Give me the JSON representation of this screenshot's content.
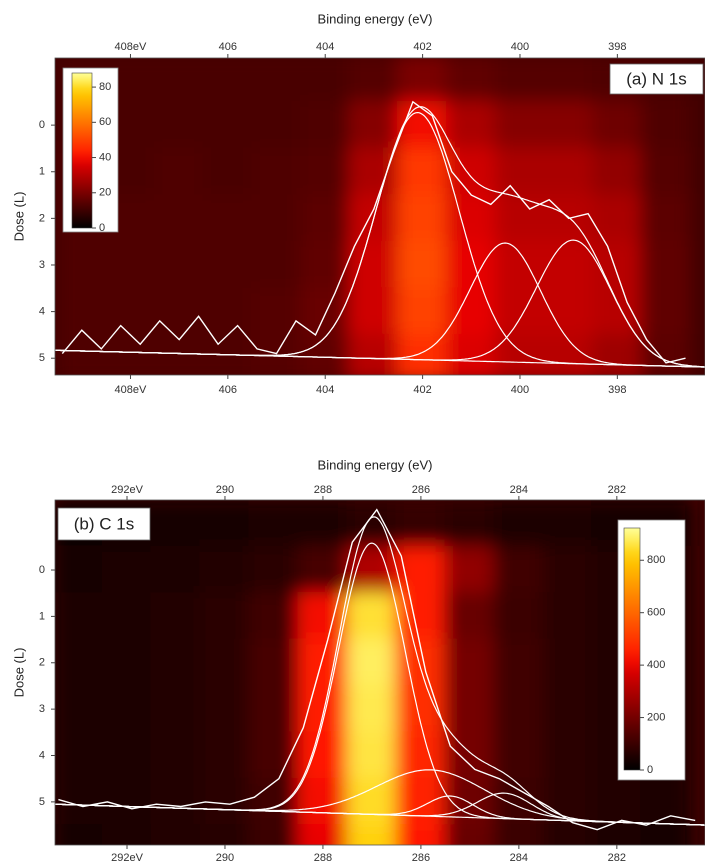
{
  "chart_data": [
    {
      "type": "heatmap",
      "panel_label": "(a) N 1s",
      "x_label": "Binding energy (eV)",
      "y_label": "Dose (L)",
      "xlim": [
        409.55,
        396.2
      ],
      "xticks": [
        {
          "value": 408,
          "label": "408eV"
        },
        406,
        404,
        402,
        400,
        398
      ],
      "ylim": [
        -1.44,
        5.36
      ],
      "yticks": [
        0,
        1,
        2,
        3,
        4,
        5
      ],
      "clim": [
        0,
        88
      ],
      "cticks": [
        0,
        20,
        40,
        60,
        80
      ],
      "z_x": [
        409,
        408,
        407,
        406,
        405,
        404,
        403,
        402,
        401,
        400,
        399,
        398,
        397
      ],
      "z_y": [
        -1,
        0,
        1,
        2,
        3,
        4,
        5
      ],
      "z": [
        [
          12,
          12,
          12,
          12,
          12,
          12,
          14,
          20,
          16,
          14,
          14,
          13,
          12
        ],
        [
          12,
          12,
          12,
          12,
          12,
          13,
          22,
          40,
          28,
          22,
          22,
          18,
          13
        ],
        [
          13,
          12,
          13,
          12,
          13,
          14,
          28,
          48,
          34,
          28,
          28,
          24,
          14
        ],
        [
          13,
          13,
          13,
          13,
          13,
          15,
          32,
          50,
          36,
          30,
          30,
          28,
          15
        ],
        [
          13,
          13,
          13,
          13,
          13,
          16,
          34,
          52,
          38,
          32,
          32,
          30,
          16
        ],
        [
          13,
          13,
          13,
          13,
          14,
          17,
          34,
          50,
          38,
          32,
          32,
          30,
          16
        ],
        [
          13,
          13,
          13,
          13,
          14,
          16,
          30,
          46,
          36,
          30,
          30,
          26,
          15
        ]
      ],
      "background": [
        4.83,
        5.19
      ],
      "peaks": [
        {
          "center": 402.1,
          "height": 5.3,
          "fwhm": 2.0
        },
        {
          "center": 400.3,
          "height": 2.55,
          "fwhm": 1.7
        },
        {
          "center": 398.9,
          "height": 2.65,
          "fwhm": 1.8
        }
      ],
      "spectrum": {
        "x": [
          409.4,
          409.0,
          408.6,
          408.2,
          407.8,
          407.4,
          407.0,
          406.6,
          406.2,
          405.8,
          405.4,
          405.0,
          404.6,
          404.2,
          403.8,
          403.4,
          403.0,
          402.6,
          402.2,
          401.8,
          401.4,
          401.0,
          400.6,
          400.2,
          399.8,
          399.4,
          399.0,
          398.6,
          398.2,
          397.8,
          397.4,
          397.0,
          396.6
        ],
        "y": [
          4.9,
          4.4,
          4.8,
          4.3,
          4.7,
          4.2,
          4.6,
          4.1,
          4.7,
          4.3,
          4.8,
          4.9,
          4.2,
          4.5,
          3.6,
          2.6,
          1.8,
          0.6,
          -0.5,
          -0.2,
          1.0,
          1.5,
          1.7,
          1.3,
          1.8,
          1.6,
          2.0,
          1.9,
          2.6,
          3.8,
          4.6,
          5.1,
          5.0
        ]
      },
      "line_color": "#ffffff"
    },
    {
      "type": "heatmap",
      "panel_label": "(b) C 1s",
      "x_label": "Binding energy (eV)",
      "y_label": "Dose (L)",
      "xlim": [
        293.47,
        280.2
      ],
      "xticks": [
        {
          "value": 292,
          "label": "292eV"
        },
        290,
        288,
        286,
        284,
        282
      ],
      "ylim": [
        -1.51,
        5.93
      ],
      "yticks": [
        0,
        1,
        2,
        3,
        4,
        5
      ],
      "clim": [
        0,
        923
      ],
      "cticks": [
        0,
        200,
        400,
        600,
        800
      ],
      "z_x": [
        293,
        292,
        291,
        290,
        289,
        288,
        287,
        286,
        285,
        284,
        283,
        282,
        281
      ],
      "z_y": [
        -1,
        0,
        1,
        2,
        3,
        4,
        5,
        6
      ],
      "z": [
        [
          30,
          30,
          35,
          40,
          45,
          50,
          70,
          90,
          70,
          50,
          45,
          40,
          35
        ],
        [
          40,
          45,
          50,
          60,
          70,
          120,
          300,
          450,
          250,
          110,
          70,
          55,
          45
        ],
        [
          45,
          50,
          60,
          70,
          110,
          420,
          850,
          450,
          180,
          100,
          70,
          55,
          45
        ],
        [
          45,
          50,
          60,
          75,
          120,
          450,
          880,
          480,
          200,
          110,
          75,
          55,
          45
        ],
        [
          45,
          50,
          60,
          75,
          120,
          450,
          870,
          480,
          200,
          110,
          75,
          55,
          45
        ],
        [
          45,
          50,
          60,
          75,
          120,
          440,
          860,
          470,
          200,
          110,
          75,
          55,
          45
        ],
        [
          45,
          50,
          60,
          70,
          110,
          420,
          840,
          460,
          190,
          105,
          70,
          55,
          45
        ],
        [
          40,
          45,
          55,
          65,
          100,
          400,
          820,
          440,
          180,
          100,
          65,
          50,
          40
        ]
      ],
      "background": [
        5.05,
        5.5
      ],
      "peaks": [
        {
          "center": 287.0,
          "height": 5.85,
          "fwhm": 1.6
        },
        {
          "center": 285.8,
          "height": 1.0,
          "fwhm": 2.6
        },
        {
          "center": 285.4,
          "height": 0.45,
          "fwhm": 1.1
        },
        {
          "center": 284.3,
          "height": 0.55,
          "fwhm": 1.3
        }
      ],
      "spectrum": {
        "x": [
          293.4,
          292.9,
          292.4,
          291.9,
          291.4,
          290.9,
          290.4,
          289.9,
          289.4,
          288.9,
          288.4,
          287.9,
          287.4,
          286.9,
          286.4,
          285.9,
          285.4,
          284.9,
          284.4,
          283.9,
          283.4,
          282.9,
          282.4,
          281.9,
          281.4,
          280.9,
          280.4
        ],
        "y": [
          4.95,
          5.1,
          5.0,
          5.15,
          5.05,
          5.1,
          5.0,
          5.05,
          4.9,
          4.5,
          3.4,
          1.5,
          -0.6,
          -1.3,
          -0.3,
          2.2,
          3.8,
          4.3,
          4.5,
          4.8,
          5.1,
          5.45,
          5.6,
          5.4,
          5.5,
          5.3,
          5.4
        ]
      },
      "line_color": "#ffffff"
    }
  ]
}
